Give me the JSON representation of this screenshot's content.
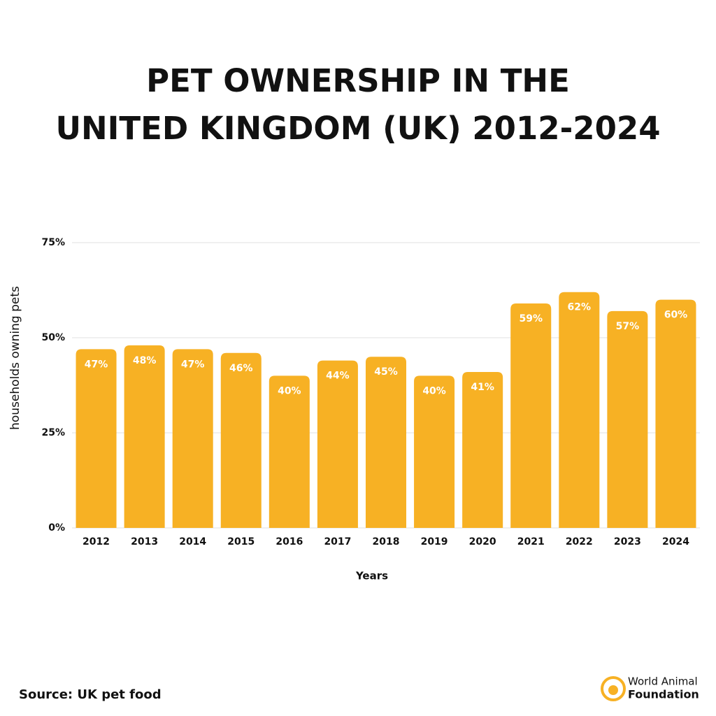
{
  "chart_data": {
    "type": "bar",
    "title": [
      "PET OWNERSHIP IN THE",
      "UNITED KINGDOM (UK) 2012-2024"
    ],
    "y_label": "households owning pets",
    "x_label": "Years",
    "categories": [
      "2012",
      "2013",
      "2014",
      "2015",
      "2016",
      "2017",
      "2018",
      "2019",
      "2020",
      "2021",
      "2022",
      "2023",
      "2024"
    ],
    "values": [
      47,
      48,
      47,
      46,
      40,
      44,
      45,
      40,
      41,
      59,
      62,
      57,
      60
    ],
    "value_labels": [
      "47%",
      "48%",
      "47%",
      "46%",
      "40%",
      "44%",
      "45%",
      "40%",
      "41%",
      "59%",
      "62%",
      "57%",
      "60%"
    ],
    "color": "#f7b124",
    "ylim": [
      0,
      75
    ],
    "yticks": [
      {
        "value": 0,
        "label": "0%"
      },
      {
        "value": 25,
        "label": "25%"
      },
      {
        "value": 50,
        "label": "50%"
      },
      {
        "value": 75,
        "label": "75%"
      }
    ],
    "grid": true
  },
  "source": "Source: UK pet food",
  "logo": {
    "line1": "World Animal",
    "line2": "Foundation"
  }
}
